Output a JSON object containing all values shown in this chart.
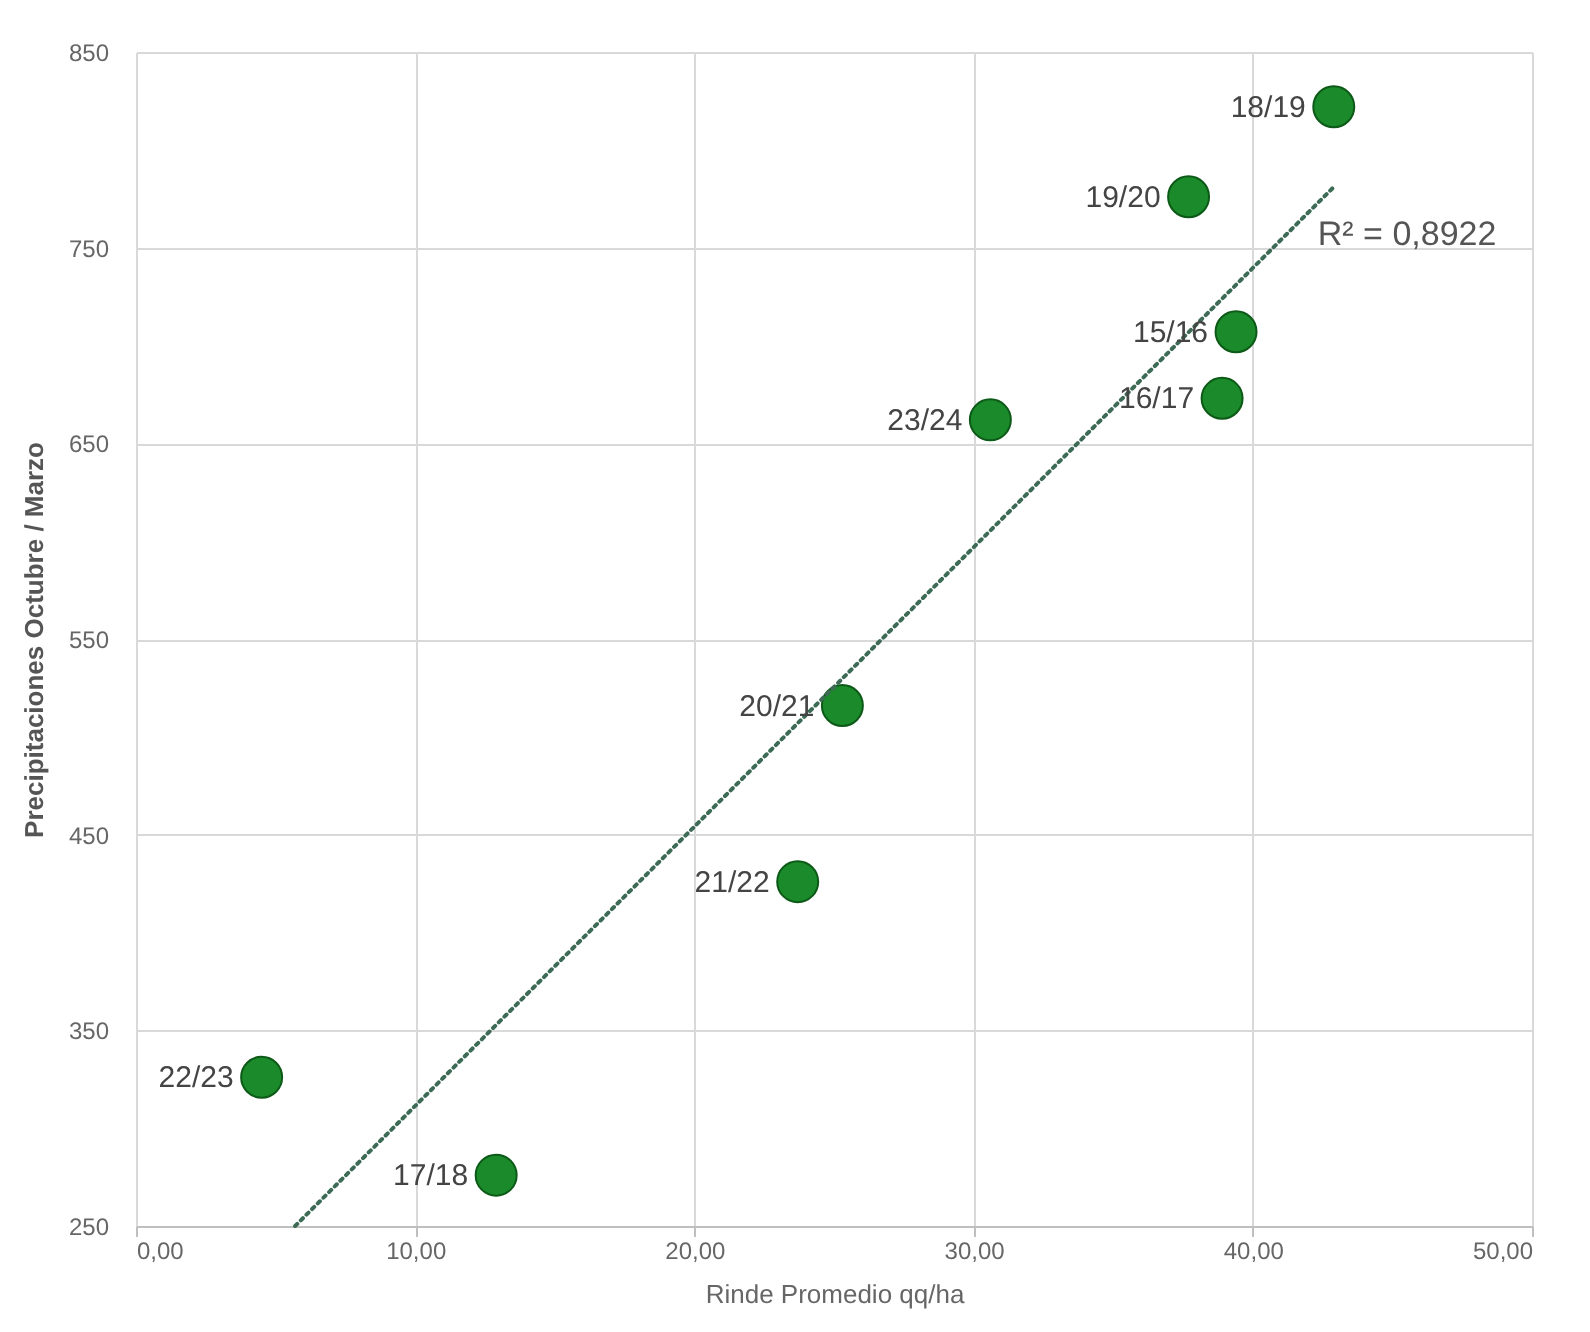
{
  "chart_data": {
    "type": "scatter",
    "xlabel": "Rinde Promedio qq/ha",
    "ylabel": "Precipitaciones Octubre / Marzo",
    "xlim": [
      0,
      50
    ],
    "ylim": [
      250,
      850
    ],
    "xticks": [
      {
        "value": 0,
        "label": "0,00"
      },
      {
        "value": 10,
        "label": "10,00"
      },
      {
        "value": 20,
        "label": "20,00"
      },
      {
        "value": 30,
        "label": "30,00"
      },
      {
        "value": 40,
        "label": "40,00"
      },
      {
        "value": 50,
        "label": "50,00"
      }
    ],
    "yticks": [
      250,
      350,
      450,
      550,
      650,
      750,
      850
    ],
    "grid": true,
    "series": [
      {
        "color": "#1a8a2a",
        "marker": "circle",
        "x": [
          42.9,
          37.7,
          39.4,
          38.9,
          30.6,
          25.3,
          23.7,
          4.5,
          12.9
        ],
        "values": [
          822,
          776,
          707,
          673,
          662,
          516,
          426,
          326,
          276
        ]
      },
      {
        "type": "line",
        "color": "#3d6b55",
        "line_style": "dotted",
        "x": [
          5.7,
          42.9
        ],
        "values": [
          250,
          781
        ]
      }
    ],
    "annotations": [
      {
        "text": "18/19",
        "x": 42.9,
        "y": 822
      },
      {
        "text": "19/20",
        "x": 37.7,
        "y": 776
      },
      {
        "text": "15/16",
        "x": 39.4,
        "y": 707
      },
      {
        "text": "16/17",
        "x": 38.9,
        "y": 673
      },
      {
        "text": "23/24",
        "x": 30.6,
        "y": 662
      },
      {
        "text": "20/21",
        "x": 25.3,
        "y": 516
      },
      {
        "text": "21/22",
        "x": 23.7,
        "y": 426
      },
      {
        "text": "22/23",
        "x": 4.5,
        "y": 326
      },
      {
        "text": "17/18",
        "x": 12.9,
        "y": 276
      },
      "R² = 0,8922"
    ]
  }
}
